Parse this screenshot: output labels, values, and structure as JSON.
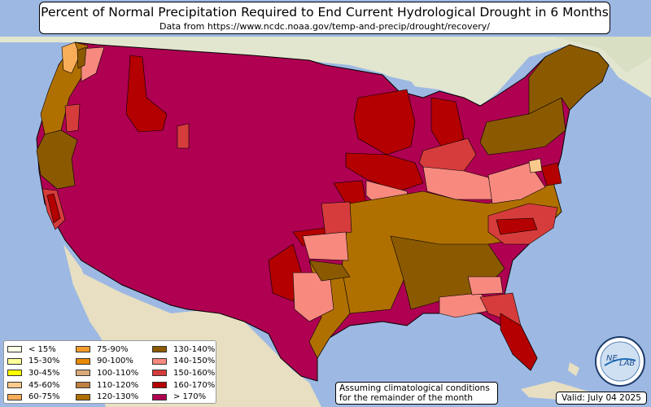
{
  "title": "Percent of Normal Precipitation Required to End Current Hydrological Drought in 6 Months",
  "subtitle": "Data from https://www.ncdc.noaa.gov/temp-and-precip/drought/recovery/",
  "legend": [
    {
      "label": "< 15%",
      "color": "#ffffe6"
    },
    {
      "label": "15-30%",
      "color": "#ffff99"
    },
    {
      "label": "30-45%",
      "color": "#ffff00"
    },
    {
      "label": "45-60%",
      "color": "#fcc98c"
    },
    {
      "label": "60-75%",
      "color": "#f8ad59"
    },
    {
      "label": "75-90%",
      "color": "#f39c2c"
    },
    {
      "label": "90-100%",
      "color": "#e88a06"
    },
    {
      "label": "100-110%",
      "color": "#d8a97a"
    },
    {
      "label": "110-120%",
      "color": "#c0803f"
    },
    {
      "label": "120-130%",
      "color": "#b07000"
    },
    {
      "label": "130-140%",
      "color": "#8b5a00"
    },
    {
      "label": "140-150%",
      "color": "#f7897f"
    },
    {
      "label": "150-160%",
      "color": "#d63c3c"
    },
    {
      "label": "160-170%",
      "color": "#b40000"
    },
    {
      "label": "> 170%",
      "color": "#af0051"
    }
  ],
  "note": {
    "line1": "Assuming climatological conditions",
    "line2": "for the remainder of the month"
  },
  "valid": "Valid: July 04 2025",
  "logo": {
    "text_ne": "NE",
    "text_lab": "LAB"
  },
  "colors": {
    "ocean": "#9db9e3",
    "land": "#e9e2c6"
  }
}
